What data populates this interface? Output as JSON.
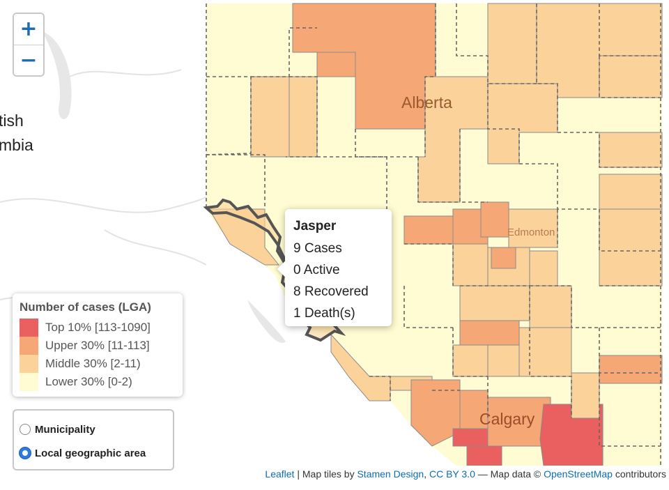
{
  "colors": {
    "top": "#ea6060",
    "upper": "#f5a875",
    "middle": "#fbd39a",
    "lower": "#fffbd2",
    "boundary": "#666666",
    "highlight": "#555555",
    "water": "#e7e7e7"
  },
  "zoom": {
    "in_label": "+",
    "out_label": "−"
  },
  "labels": {
    "bc_line1": "tish",
    "bc_line2": "mbia",
    "alberta": "Alberta",
    "edmonton": "Edmonton",
    "calgary": "Calgary"
  },
  "popup": {
    "name": "Jasper",
    "cases": "9 Cases",
    "active": "0 Active",
    "recovered": "8 Recovered",
    "deaths": "1 Death(s)"
  },
  "legend": {
    "title": "Number of cases (LGA)",
    "items": [
      {
        "label": "Top 10% [113-1090]",
        "color": "#ea6060"
      },
      {
        "label": "Upper 30% [11-113]",
        "color": "#f5a875"
      },
      {
        "label": "Middle 30% [2-11)",
        "color": "#fbd39a"
      },
      {
        "label": "Lower 30% [0-2)",
        "color": "#fffbd2"
      }
    ]
  },
  "layers": {
    "options": [
      {
        "label": "Municipality",
        "selected": false
      },
      {
        "label": "Local geographic area",
        "selected": true
      }
    ]
  },
  "attribution": {
    "leaflet": "Leaflet",
    "sep": " | Map tiles by ",
    "stamen": "Stamen Design",
    "comma": ", ",
    "ccby": "CC BY 3.0",
    "dash": " — Map data © ",
    "osm": "OpenStreetMap",
    "tail": " contributors"
  }
}
